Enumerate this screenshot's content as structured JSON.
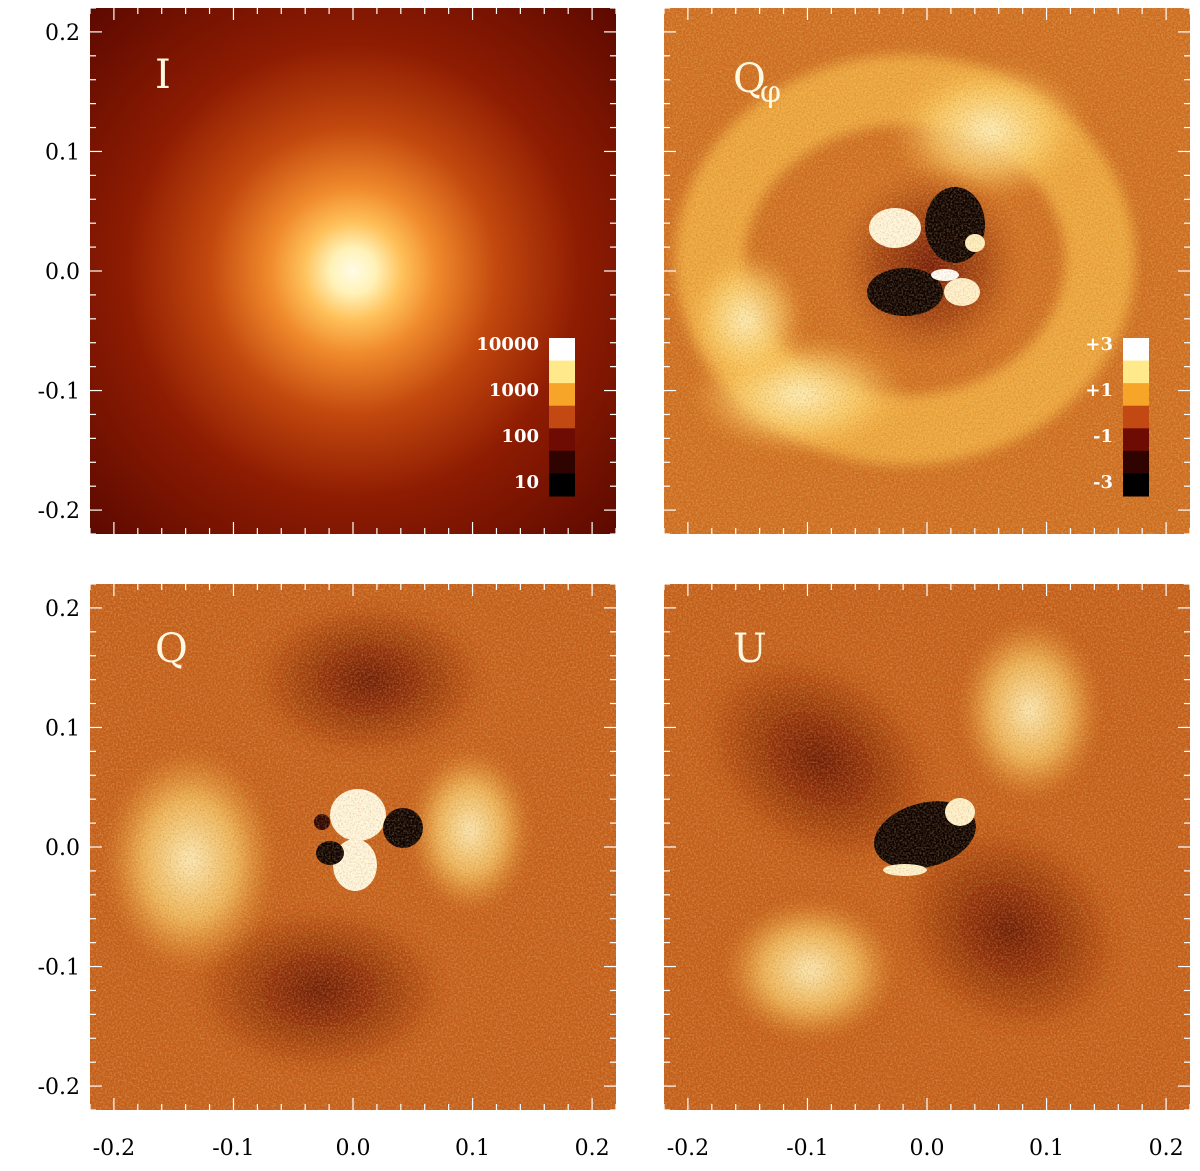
{
  "chart_data": [
    {
      "type": "heatmap",
      "panel": "I",
      "label": "I",
      "xlim": [
        -0.22,
        0.22
      ],
      "ylim": [
        -0.22,
        0.22
      ],
      "x_ticks": [
        "-0.2",
        "-0.1",
        "0.0",
        "0.1",
        "0.2"
      ],
      "y_ticks": [
        "0.2",
        "0.1",
        "0.0",
        "-0.1",
        "-0.2"
      ],
      "show_x_tick_labels": false,
      "show_y_tick_labels": true,
      "colorbar": {
        "labels": [
          "10000",
          "1000",
          "100",
          "10"
        ],
        "scale": "log"
      },
      "structure": "centrally peaked source at (0.0, 0.0)"
    },
    {
      "type": "heatmap",
      "panel": "Qphi",
      "label": "Q",
      "label_subscript": "φ",
      "xlim": [
        -0.22,
        0.22
      ],
      "ylim": [
        -0.22,
        0.22
      ],
      "x_ticks": [
        "-0.2",
        "-0.1",
        "0.0",
        "0.1",
        "0.2"
      ],
      "y_ticks": [
        "0.2",
        "0.1",
        "0.0",
        "-0.1",
        "-0.2"
      ],
      "show_x_tick_labels": false,
      "show_y_tick_labels": false,
      "colorbar": {
        "labels": [
          "+3",
          "+1",
          "-1",
          "-3"
        ],
        "scale": "linear"
      },
      "structure": "positive ring around centre, dark cross pattern in core"
    },
    {
      "type": "heatmap",
      "panel": "Q",
      "label": "Q",
      "xlim": [
        -0.22,
        0.22
      ],
      "ylim": [
        -0.22,
        0.22
      ],
      "x_ticks": [
        "-0.2",
        "-0.1",
        "0.0",
        "0.1",
        "0.2"
      ],
      "y_ticks": [
        "0.2",
        "0.1",
        "0.0",
        "-0.1",
        "-0.2"
      ],
      "show_x_tick_labels": true,
      "show_y_tick_labels": true,
      "structure": "butterfly: positive lobes left/right, negative lobes top/bottom"
    },
    {
      "type": "heatmap",
      "panel": "U",
      "label": "U",
      "xlim": [
        -0.22,
        0.22
      ],
      "ylim": [
        -0.22,
        0.22
      ],
      "x_ticks": [
        "-0.2",
        "-0.1",
        "0.0",
        "0.1",
        "0.2"
      ],
      "y_ticks": [
        "0.2",
        "0.1",
        "0.0",
        "-0.1",
        "-0.2"
      ],
      "show_x_tick_labels": true,
      "show_y_tick_labels": false,
      "structure": "butterfly rotated 45°: positive lobes upper-right/lower-left, negative lobes upper-left/lower-right"
    }
  ],
  "colors": {
    "background_field": "#c8661e",
    "dark": "#4a0600",
    "bright": "#fff6c8",
    "colorbar_steps": [
      "#ffffff",
      "#ffe98a",
      "#f7a528",
      "#c24a12",
      "#6e0c04",
      "#2e0300",
      "#000000"
    ]
  }
}
